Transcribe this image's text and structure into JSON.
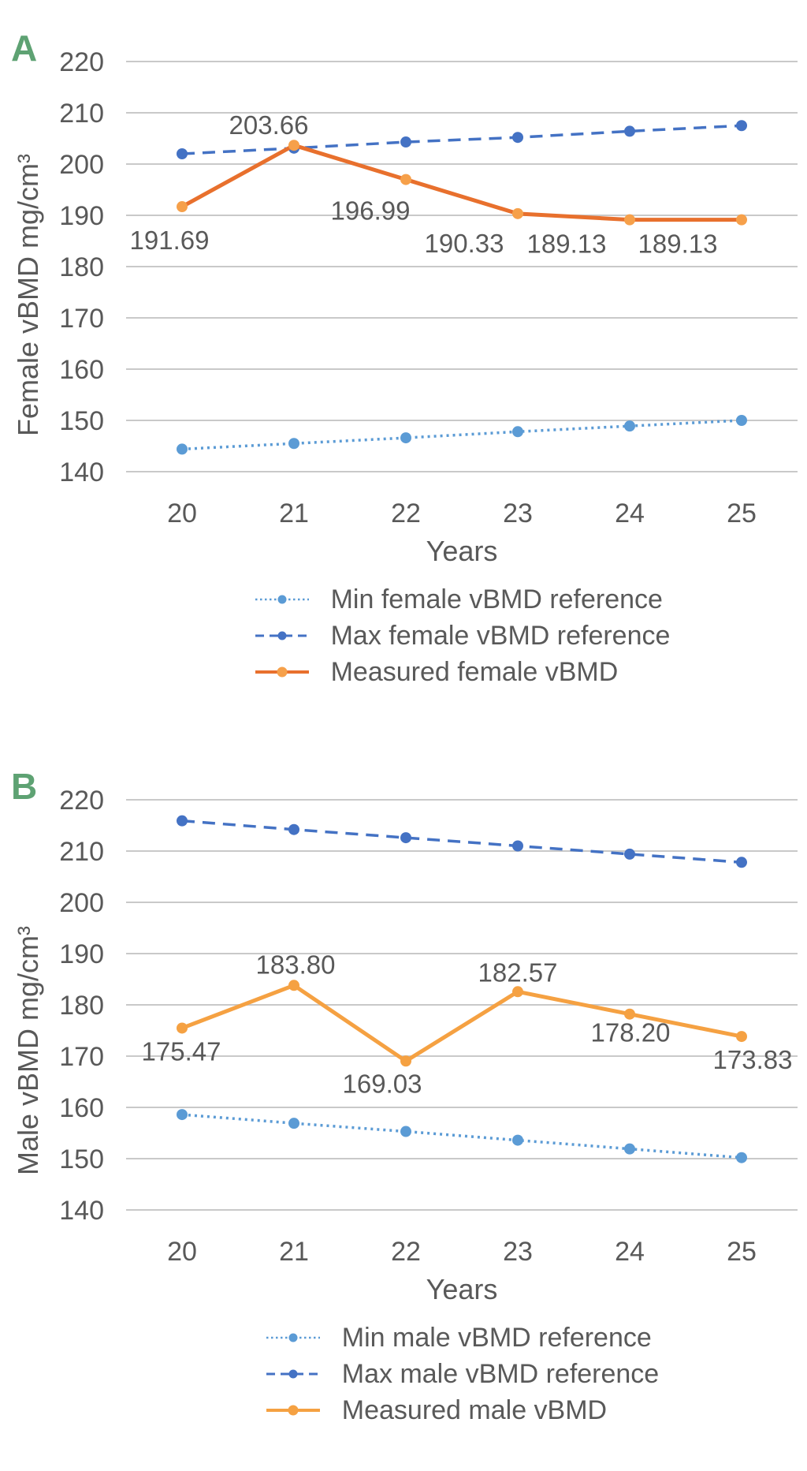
{
  "figure_text_color": "#595959",
  "gridline_color": "#C9C9C9",
  "panel_letter_color": "#5EA273",
  "chart_data": [
    {
      "type": "line",
      "panel_letter": "A",
      "ylabel": "Female vBMD mg/cm³",
      "xlabel": "Years",
      "categories": [
        20,
        21,
        22,
        23,
        24,
        25
      ],
      "ylim": [
        140,
        220
      ],
      "yticks": [
        220,
        210,
        200,
        190,
        180,
        170,
        160,
        150,
        140
      ],
      "grid": true,
      "legend_position": "bottom",
      "series": [
        {
          "name": "Min female vBMD reference",
          "style": "dotted",
          "color": "#5B9BD5",
          "values": [
            144.4,
            145.5,
            146.6,
            147.8,
            148.9,
            150.0
          ]
        },
        {
          "name": "Max female vBMD reference",
          "style": "dashed",
          "color": "#4472C4",
          "values": [
            202.0,
            203.1,
            204.3,
            205.2,
            206.4,
            207.5
          ]
        },
        {
          "name": "Measured female vBMD",
          "style": "solid",
          "color": "#E8702D",
          "marker_color": "#F6A04A",
          "values": [
            191.69,
            203.66,
            196.99,
            190.33,
            189.13,
            189.13
          ],
          "labels": [
            "191.69",
            "203.66",
            "196.99",
            "190.33",
            "189.13",
            "189.13"
          ],
          "label_offsets": [
            [
              -16,
              54
            ],
            [
              -32,
              -14
            ],
            [
              -45,
              51
            ],
            [
              -68,
              49
            ],
            [
              -80,
              42
            ],
            [
              -81,
              42
            ]
          ]
        }
      ]
    },
    {
      "type": "line",
      "panel_letter": "B",
      "ylabel": "Male vBMD mg/cm³",
      "xlabel": "Years",
      "categories": [
        20,
        21,
        22,
        23,
        24,
        25
      ],
      "ylim": [
        140,
        220
      ],
      "yticks": [
        220,
        210,
        200,
        190,
        180,
        170,
        160,
        150,
        140
      ],
      "grid": true,
      "legend_position": "bottom",
      "series": [
        {
          "name": "Min male vBMD reference",
          "style": "dotted",
          "color": "#5B9BD5",
          "values": [
            158.6,
            156.9,
            155.3,
            153.6,
            151.9,
            150.2
          ]
        },
        {
          "name": "Max male vBMD reference",
          "style": "dashed",
          "color": "#4472C4",
          "values": [
            215.9,
            214.2,
            212.6,
            211.0,
            209.4,
            207.8
          ]
        },
        {
          "name": "Measured male vBMD",
          "style": "solid",
          "color": "#F5A142",
          "marker_color": "#F5A142",
          "values": [
            175.47,
            183.8,
            169.03,
            182.57,
            178.2,
            173.83
          ],
          "labels": [
            "175.47",
            "183.80",
            "169.03",
            "182.57",
            "178.20",
            "173.83"
          ],
          "label_offsets": [
            [
              -1,
              41
            ],
            [
              2,
              -15
            ],
            [
              -30,
              40
            ],
            [
              0,
              -13
            ],
            [
              1,
              35
            ],
            [
              14,
              41
            ]
          ]
        }
      ]
    }
  ]
}
